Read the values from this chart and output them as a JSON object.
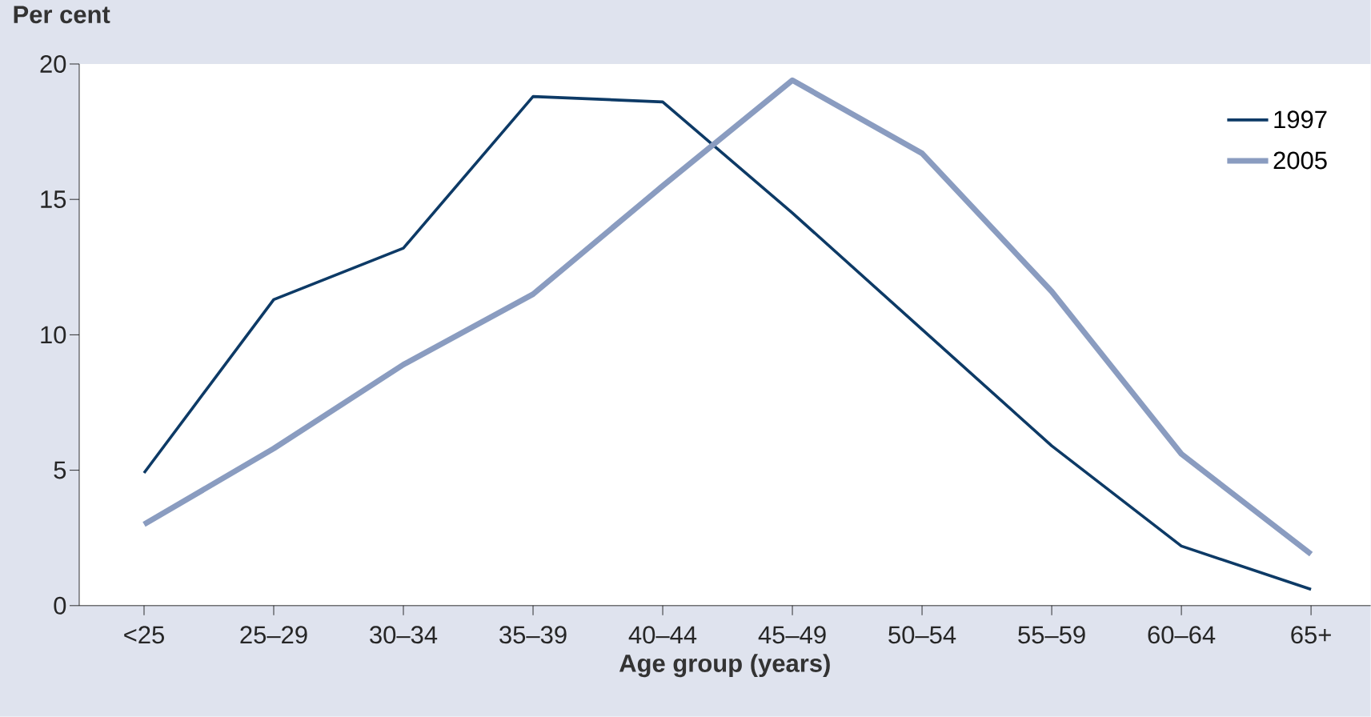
{
  "chart_data": {
    "type": "line",
    "ylabel": "Per cent",
    "xlabel": "Age group (years)",
    "categories": [
      "<25",
      "25–29",
      "30–34",
      "35–39",
      "40–44",
      "45–49",
      "50–54",
      "55–59",
      "60–64",
      "65+"
    ],
    "series": [
      {
        "name": "1997",
        "color": "#0d3a66",
        "values": [
          4.9,
          11.3,
          13.2,
          18.8,
          18.6,
          14.5,
          10.2,
          5.9,
          2.2,
          0.6
        ]
      },
      {
        "name": "2005",
        "color": "#8a9cc0",
        "values": [
          3.0,
          5.8,
          8.9,
          11.5,
          15.5,
          19.4,
          16.7,
          11.6,
          5.6,
          1.9
        ]
      }
    ],
    "ylim": [
      0,
      20
    ],
    "yticks": [
      0,
      5,
      10,
      15,
      20
    ],
    "legend": "top right",
    "grid": false,
    "marker": "none",
    "line_style": "solid"
  }
}
